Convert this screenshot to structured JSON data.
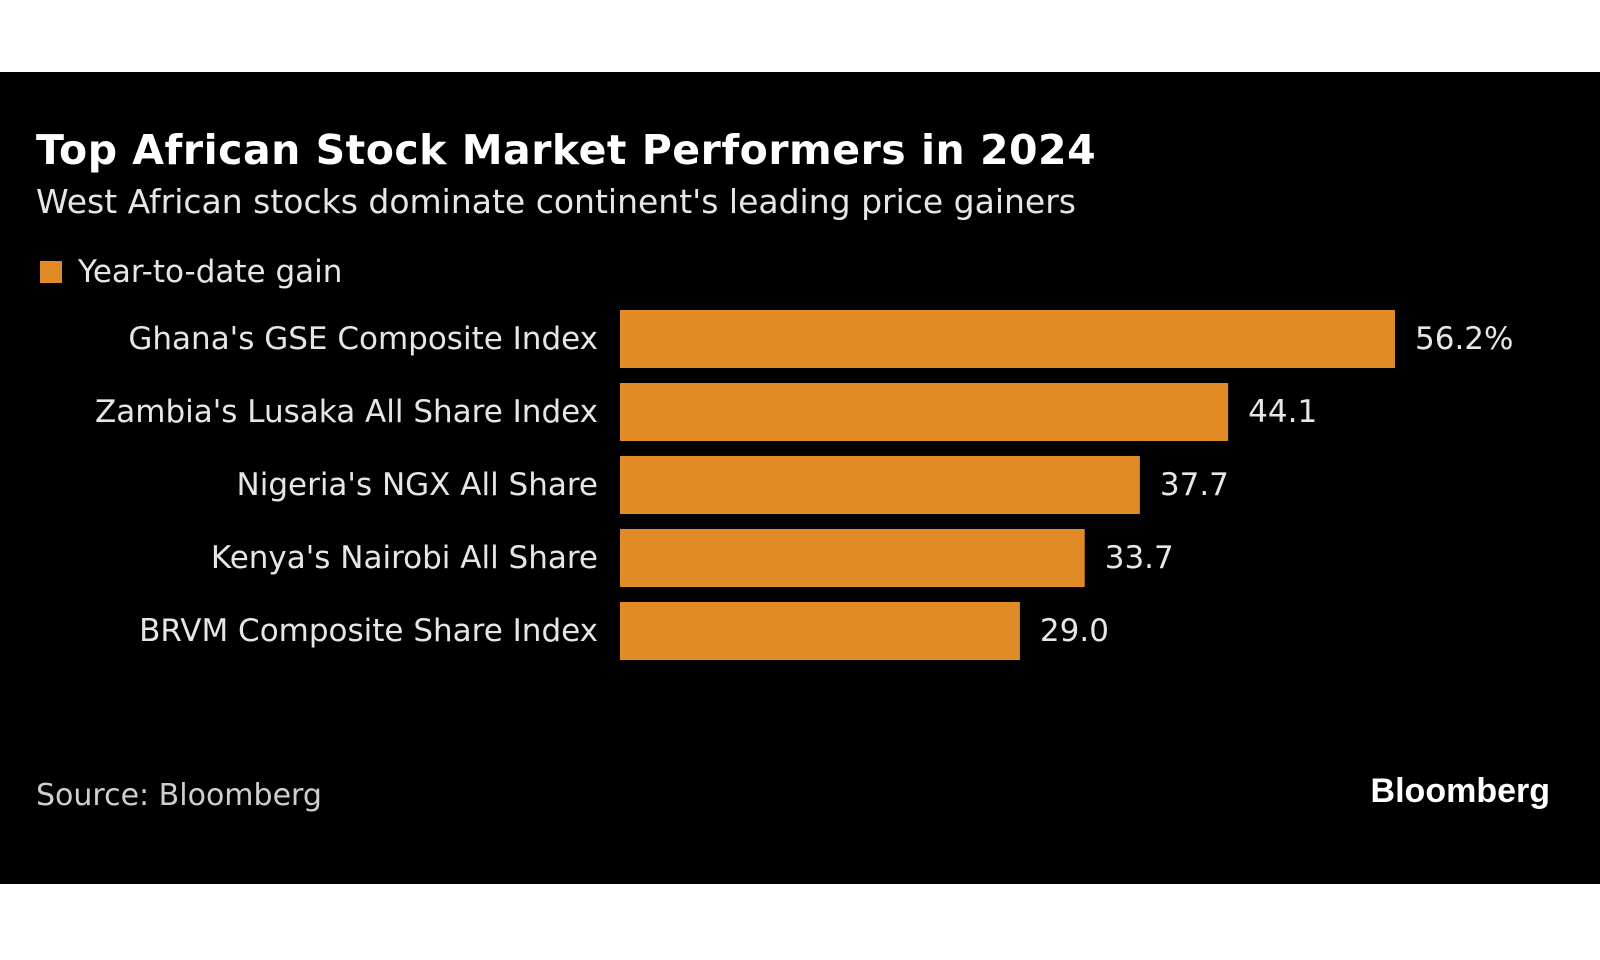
{
  "colors": {
    "bar": "#E08B26",
    "background": "#000000",
    "text": "#e6e6e6"
  },
  "chart_data": {
    "type": "bar",
    "orientation": "horizontal",
    "title": "Top African Stock Market Performers in 2024",
    "subtitle": "West African stocks dominate continent's leading price gainers",
    "legend": [
      "Year-to-date gain"
    ],
    "legend_position": "top-left",
    "grid": false,
    "categories": [
      "Ghana's GSE Composite Index",
      "Zambia's Lusaka All Share Index",
      "Nigeria's NGX All Share",
      "Kenya's Nairobi All Share",
      "BRVM Composite Share Index"
    ],
    "series": [
      {
        "name": "Year-to-date gain",
        "values": [
          56.2,
          44.1,
          37.7,
          33.7,
          29.0
        ]
      }
    ],
    "value_labels": [
      "56.2%",
      "44.1",
      "37.7",
      "33.7",
      "29.0"
    ],
    "xlim": [
      0,
      56.2
    ]
  },
  "footer": {
    "source": "Source: Bloomberg",
    "brand": "Bloomberg"
  }
}
